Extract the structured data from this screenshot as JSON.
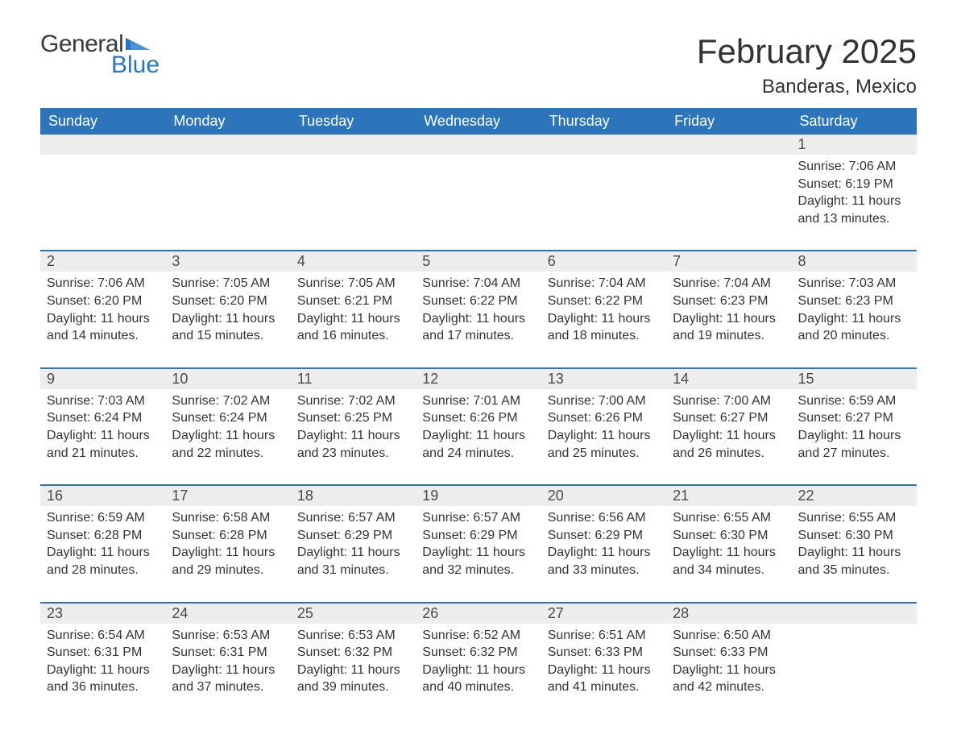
{
  "brand": {
    "word1": "General",
    "word2": "Blue",
    "flag_color": "#2776c0",
    "text_color": "#3a3a3a"
  },
  "title": {
    "month": "February 2025",
    "location": "Banderas, Mexico"
  },
  "colors": {
    "header_bg": "#2d75bb",
    "header_text": "#ffffff",
    "daynum_bg": "#ededed",
    "row_border": "#2d75bb",
    "body_text": "#333333",
    "page_bg": "#ffffff"
  },
  "weekdays": [
    "Sunday",
    "Monday",
    "Tuesday",
    "Wednesday",
    "Thursday",
    "Friday",
    "Saturday"
  ],
  "weeks": [
    [
      null,
      null,
      null,
      null,
      null,
      null,
      {
        "n": "1",
        "sunrise": "Sunrise: 7:06 AM",
        "sunset": "Sunset: 6:19 PM",
        "day1": "Daylight: 11 hours",
        "day2": "and 13 minutes."
      }
    ],
    [
      {
        "n": "2",
        "sunrise": "Sunrise: 7:06 AM",
        "sunset": "Sunset: 6:20 PM",
        "day1": "Daylight: 11 hours",
        "day2": "and 14 minutes."
      },
      {
        "n": "3",
        "sunrise": "Sunrise: 7:05 AM",
        "sunset": "Sunset: 6:20 PM",
        "day1": "Daylight: 11 hours",
        "day2": "and 15 minutes."
      },
      {
        "n": "4",
        "sunrise": "Sunrise: 7:05 AM",
        "sunset": "Sunset: 6:21 PM",
        "day1": "Daylight: 11 hours",
        "day2": "and 16 minutes."
      },
      {
        "n": "5",
        "sunrise": "Sunrise: 7:04 AM",
        "sunset": "Sunset: 6:22 PM",
        "day1": "Daylight: 11 hours",
        "day2": "and 17 minutes."
      },
      {
        "n": "6",
        "sunrise": "Sunrise: 7:04 AM",
        "sunset": "Sunset: 6:22 PM",
        "day1": "Daylight: 11 hours",
        "day2": "and 18 minutes."
      },
      {
        "n": "7",
        "sunrise": "Sunrise: 7:04 AM",
        "sunset": "Sunset: 6:23 PM",
        "day1": "Daylight: 11 hours",
        "day2": "and 19 minutes."
      },
      {
        "n": "8",
        "sunrise": "Sunrise: 7:03 AM",
        "sunset": "Sunset: 6:23 PM",
        "day1": "Daylight: 11 hours",
        "day2": "and 20 minutes."
      }
    ],
    [
      {
        "n": "9",
        "sunrise": "Sunrise: 7:03 AM",
        "sunset": "Sunset: 6:24 PM",
        "day1": "Daylight: 11 hours",
        "day2": "and 21 minutes."
      },
      {
        "n": "10",
        "sunrise": "Sunrise: 7:02 AM",
        "sunset": "Sunset: 6:24 PM",
        "day1": "Daylight: 11 hours",
        "day2": "and 22 minutes."
      },
      {
        "n": "11",
        "sunrise": "Sunrise: 7:02 AM",
        "sunset": "Sunset: 6:25 PM",
        "day1": "Daylight: 11 hours",
        "day2": "and 23 minutes."
      },
      {
        "n": "12",
        "sunrise": "Sunrise: 7:01 AM",
        "sunset": "Sunset: 6:26 PM",
        "day1": "Daylight: 11 hours",
        "day2": "and 24 minutes."
      },
      {
        "n": "13",
        "sunrise": "Sunrise: 7:00 AM",
        "sunset": "Sunset: 6:26 PM",
        "day1": "Daylight: 11 hours",
        "day2": "and 25 minutes."
      },
      {
        "n": "14",
        "sunrise": "Sunrise: 7:00 AM",
        "sunset": "Sunset: 6:27 PM",
        "day1": "Daylight: 11 hours",
        "day2": "and 26 minutes."
      },
      {
        "n": "15",
        "sunrise": "Sunrise: 6:59 AM",
        "sunset": "Sunset: 6:27 PM",
        "day1": "Daylight: 11 hours",
        "day2": "and 27 minutes."
      }
    ],
    [
      {
        "n": "16",
        "sunrise": "Sunrise: 6:59 AM",
        "sunset": "Sunset: 6:28 PM",
        "day1": "Daylight: 11 hours",
        "day2": "and 28 minutes."
      },
      {
        "n": "17",
        "sunrise": "Sunrise: 6:58 AM",
        "sunset": "Sunset: 6:28 PM",
        "day1": "Daylight: 11 hours",
        "day2": "and 29 minutes."
      },
      {
        "n": "18",
        "sunrise": "Sunrise: 6:57 AM",
        "sunset": "Sunset: 6:29 PM",
        "day1": "Daylight: 11 hours",
        "day2": "and 31 minutes."
      },
      {
        "n": "19",
        "sunrise": "Sunrise: 6:57 AM",
        "sunset": "Sunset: 6:29 PM",
        "day1": "Daylight: 11 hours",
        "day2": "and 32 minutes."
      },
      {
        "n": "20",
        "sunrise": "Sunrise: 6:56 AM",
        "sunset": "Sunset: 6:29 PM",
        "day1": "Daylight: 11 hours",
        "day2": "and 33 minutes."
      },
      {
        "n": "21",
        "sunrise": "Sunrise: 6:55 AM",
        "sunset": "Sunset: 6:30 PM",
        "day1": "Daylight: 11 hours",
        "day2": "and 34 minutes."
      },
      {
        "n": "22",
        "sunrise": "Sunrise: 6:55 AM",
        "sunset": "Sunset: 6:30 PM",
        "day1": "Daylight: 11 hours",
        "day2": "and 35 minutes."
      }
    ],
    [
      {
        "n": "23",
        "sunrise": "Sunrise: 6:54 AM",
        "sunset": "Sunset: 6:31 PM",
        "day1": "Daylight: 11 hours",
        "day2": "and 36 minutes."
      },
      {
        "n": "24",
        "sunrise": "Sunrise: 6:53 AM",
        "sunset": "Sunset: 6:31 PM",
        "day1": "Daylight: 11 hours",
        "day2": "and 37 minutes."
      },
      {
        "n": "25",
        "sunrise": "Sunrise: 6:53 AM",
        "sunset": "Sunset: 6:32 PM",
        "day1": "Daylight: 11 hours",
        "day2": "and 39 minutes."
      },
      {
        "n": "26",
        "sunrise": "Sunrise: 6:52 AM",
        "sunset": "Sunset: 6:32 PM",
        "day1": "Daylight: 11 hours",
        "day2": "and 40 minutes."
      },
      {
        "n": "27",
        "sunrise": "Sunrise: 6:51 AM",
        "sunset": "Sunset: 6:33 PM",
        "day1": "Daylight: 11 hours",
        "day2": "and 41 minutes."
      },
      {
        "n": "28",
        "sunrise": "Sunrise: 6:50 AM",
        "sunset": "Sunset: 6:33 PM",
        "day1": "Daylight: 11 hours",
        "day2": "and 42 minutes."
      },
      null
    ]
  ]
}
